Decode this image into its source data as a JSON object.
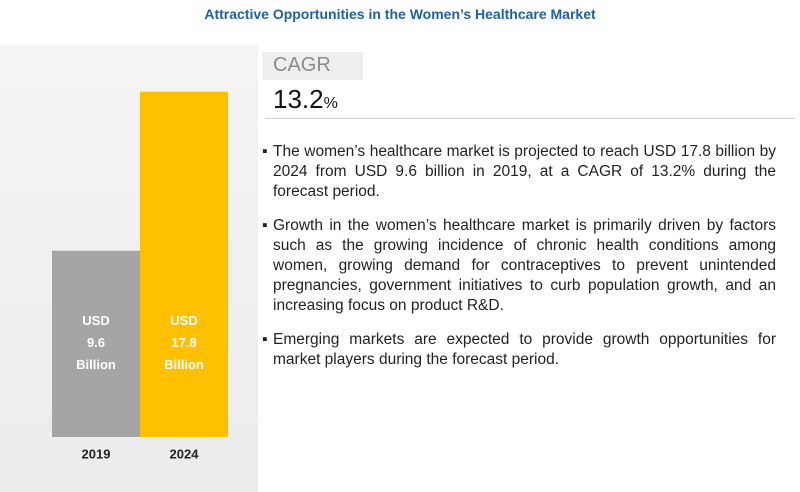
{
  "title": "Attractive Opportunities in the Women’s Healthcare Market",
  "chart_data": {
    "type": "bar",
    "categories": [
      "2019",
      "2024"
    ],
    "values": [
      9.6,
      17.8
    ],
    "value_labels": [
      "USD 9.6 Billion",
      "USD 17.8 Billion"
    ],
    "colors": [
      "#a5a5a5",
      "#ffc000"
    ]
  },
  "cagr": {
    "label": "CAGR",
    "value": "13.2",
    "unit": "%"
  },
  "bullets": [
    "The women’s healthcare market is projected to reach USD 17.8 billion by 2024 from USD 9.6 billion in 2019, at a CAGR of 13.2% during the forecast period.",
    "Growth in the women’s healthcare market is primarily driven by factors such as the growing incidence of chronic health conditions among women, growing demand for contraceptives to prevent unintended pregnancies, government initiatives to curb population growth, and an increasing focus on product R&D.",
    "Emerging markets are expected to provide growth opportunities for market players during the forecast period."
  ]
}
